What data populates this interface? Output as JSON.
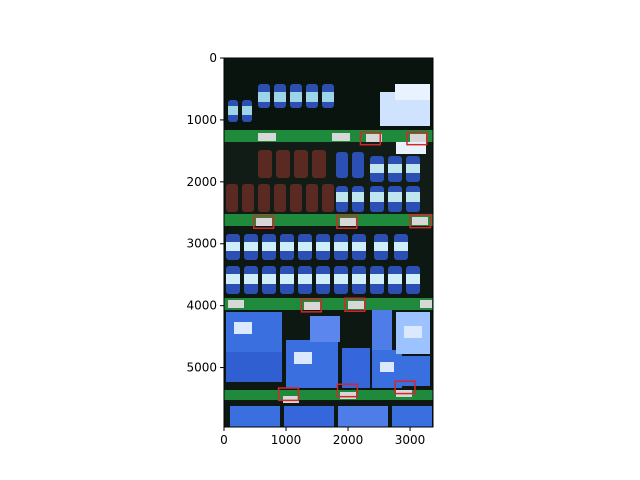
{
  "figure": {
    "image_description_colors": {
      "shelf_edge": "#1f8a3c",
      "shelf_back": "#0d1a12",
      "bottle_cap": "#2b4fb3",
      "bottle_label": "#6fb9d6",
      "box": "#3a6fe0",
      "box_light": "#9cc3ff",
      "tag": "#d7d7d7",
      "detection_box": "#d62728"
    },
    "x_axis": {
      "tick_labels": [
        "0",
        "1000",
        "2000",
        "3000"
      ],
      "tick_values": [
        0,
        1000,
        2000,
        3000
      ],
      "range": [
        0,
        3370
      ]
    },
    "y_axis": {
      "tick_labels": [
        "0",
        "1000",
        "2000",
        "3000",
        "4000",
        "5000"
      ],
      "tick_values": [
        0,
        1000,
        2000,
        3000,
        4000,
        5000
      ],
      "range": [
        5960,
        0
      ]
    },
    "detections": [
      {
        "x": 2200,
        "y": 1200,
        "w": 320,
        "h": 200
      },
      {
        "x": 2950,
        "y": 1200,
        "w": 320,
        "h": 200
      },
      {
        "x": 480,
        "y": 2550,
        "w": 320,
        "h": 200
      },
      {
        "x": 1820,
        "y": 2550,
        "w": 320,
        "h": 200
      },
      {
        "x": 3000,
        "y": 2530,
        "w": 330,
        "h": 210
      },
      {
        "x": 1250,
        "y": 3900,
        "w": 320,
        "h": 200
      },
      {
        "x": 1950,
        "y": 3880,
        "w": 320,
        "h": 210
      },
      {
        "x": 880,
        "y": 5330,
        "w": 320,
        "h": 200
      },
      {
        "x": 1830,
        "y": 5270,
        "w": 320,
        "h": 200
      },
      {
        "x": 2760,
        "y": 5220,
        "w": 320,
        "h": 200
      }
    ]
  }
}
